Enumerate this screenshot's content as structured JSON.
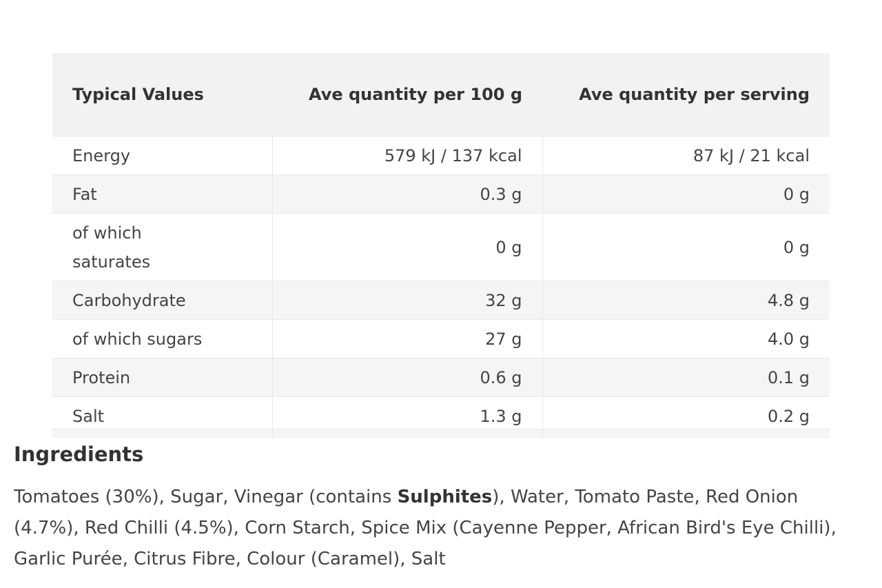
{
  "table": {
    "header": [
      "Typical Values",
      "Ave quantity per 100 g",
      "Ave quantity per serving"
    ],
    "rows": [
      [
        "Energy",
        "579 kJ / 137 kcal",
        "87 kJ / 21 kcal"
      ],
      [
        "Fat",
        "0.3 g",
        "0 g"
      ],
      [
        "of which saturates",
        "0 g",
        "0 g"
      ],
      [
        "Carbohydrate",
        "32 g",
        "4.8 g"
      ],
      [
        "of which sugars",
        "27 g",
        "4.0 g"
      ],
      [
        "Protein",
        "0.6 g",
        "0.1 g"
      ],
      [
        "Salt",
        "1.3 g",
        "0.2 g"
      ]
    ]
  },
  "ingredients": {
    "title": "Ingredients",
    "text_before": "Tomatoes (30%), Sugar, Vinegar (contains ",
    "allergen": "Sulphites",
    "text_after": "), Water, Tomato Paste, Red Onion (4.7%), Red Chilli (4.5%), Corn Starch, Spice Mix (Cayenne Pepper, African Bird's Eye Chilli), Garlic Purée, Citrus Fibre, Colour (Caramel), Salt"
  }
}
